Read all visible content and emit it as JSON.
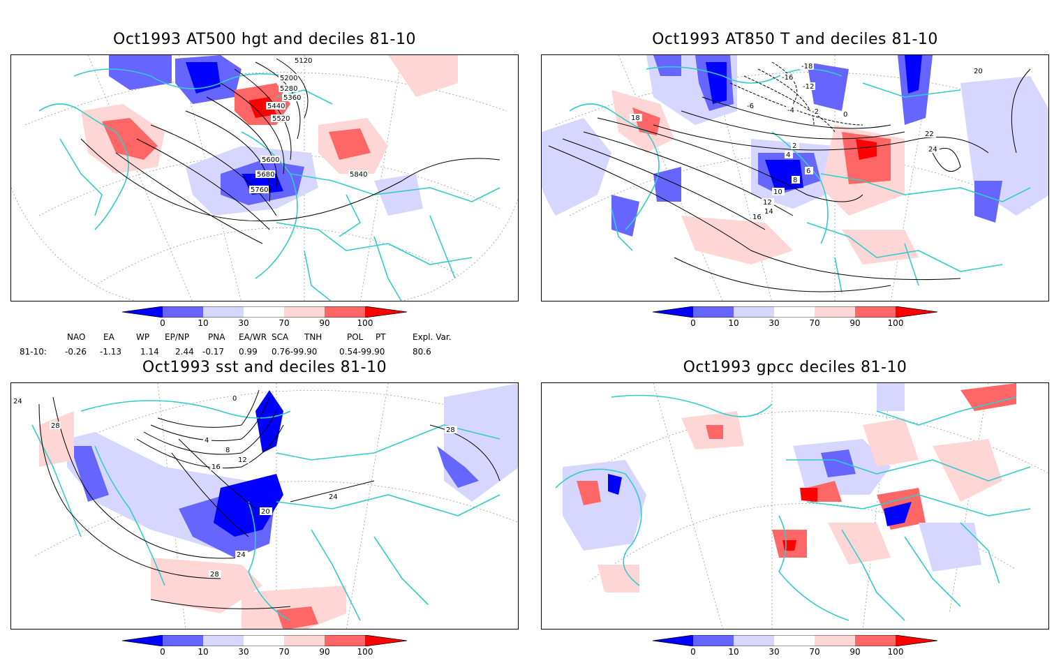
{
  "panels": [
    {
      "title": "Oct1993 AT500 hgt and deciles 81-10",
      "contour_labels": [
        "5120",
        "5200",
        "5280",
        "5360",
        "5440",
        "5520",
        "5600",
        "5680",
        "5760",
        "5840"
      ]
    },
    {
      "title": "Oct1993 AT850 T and deciles 81-10",
      "contour_labels": [
        "-18",
        "-16",
        "-12",
        "-6",
        "-4",
        "-2",
        "0",
        "2",
        "4",
        "6",
        "8",
        "10",
        "12",
        "14",
        "16",
        "18",
        "20",
        "22",
        "24"
      ]
    },
    {
      "title": "Oct1993 sst and deciles 81-10",
      "contour_labels": [
        "24",
        "28",
        "0",
        "4",
        "8",
        "12",
        "16",
        "20"
      ]
    },
    {
      "title": "Oct1993 gpcc deciles 81-10",
      "contour_labels": []
    }
  ],
  "colorbar": {
    "ticks": [
      "0",
      "10",
      "30",
      "70",
      "90",
      "100"
    ],
    "colors": [
      "#0000ff",
      "#6666ff",
      "#d6d6ff",
      "#ffffff",
      "#ffd6d6",
      "#ff6666",
      "#ff0000"
    ]
  },
  "indices": {
    "names": [
      "NAO",
      "EA",
      "WP",
      "EP/NP",
      "PNA",
      "EA/WR",
      "SCA",
      "TNH",
      "POL",
      "PT",
      "Expl. Var."
    ],
    "row_label": "81-10:",
    "values": [
      "-0.26",
      "-1.13",
      "1.14",
      "2.44",
      "-0.17",
      "0.99",
      "0.76-99.90",
      "",
      "0.54-99.90",
      "",
      "80.6"
    ]
  },
  "colors": {
    "coast": "#33cccc",
    "grid": "#888888",
    "contour": "#000000"
  }
}
